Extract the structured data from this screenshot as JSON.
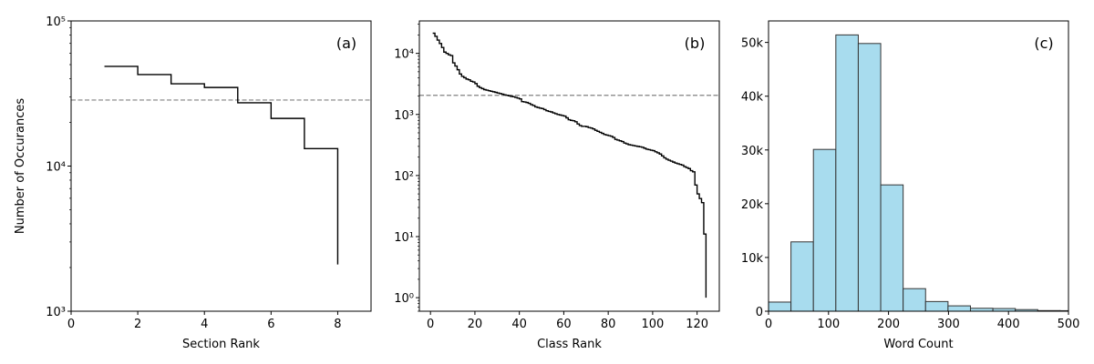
{
  "chart_data": [
    {
      "panel": "(a)",
      "type": "line",
      "drawstyle": "steps-post",
      "xlabel": "Section Rank",
      "ylabel": "Number of Occurances",
      "xlim": [
        0,
        9
      ],
      "ylim": [
        1000,
        100000
      ],
      "yscale": "log",
      "xticks": [
        0,
        2,
        4,
        6,
        8
      ],
      "xtick_labels": [
        "0",
        "2",
        "4",
        "6",
        "8"
      ],
      "yticks": [
        1000,
        10000,
        100000
      ],
      "ytick_labels": [
        "10³",
        "10⁴",
        "10⁵"
      ],
      "x": [
        1,
        2,
        3,
        4,
        5,
        6,
        7,
        8
      ],
      "y": [
        48600,
        42700,
        36900,
        34800,
        27300,
        21300,
        13200,
        2100
      ],
      "hline": {
        "y": 28500,
        "style": "dashed",
        "color": "#808080"
      },
      "line_color": "#000000",
      "grid": false
    },
    {
      "panel": "(b)",
      "type": "line",
      "drawstyle": "steps-post",
      "xlabel": "Class Rank",
      "ylabel": "",
      "xlim": [
        -5,
        130
      ],
      "ylim": [
        0.6,
        34000
      ],
      "yscale": "log",
      "xticks": [
        0,
        20,
        40,
        60,
        80,
        100,
        120
      ],
      "xtick_labels": [
        "0",
        "20",
        "40",
        "60",
        "80",
        "100",
        "120"
      ],
      "yticks": [
        1,
        10,
        100,
        1000,
        10000
      ],
      "ytick_labels": [
        "10⁰",
        "10¹",
        "10²",
        "10³",
        "10⁴"
      ],
      "y": [
        21400,
        19000,
        16500,
        14500,
        12500,
        10500,
        10000,
        9500,
        9200,
        7000,
        6200,
        5400,
        4600,
        4200,
        4000,
        3800,
        3700,
        3500,
        3400,
        3200,
        2900,
        2750,
        2650,
        2550,
        2500,
        2450,
        2400,
        2350,
        2300,
        2250,
        2200,
        2150,
        2100,
        2060,
        2020,
        1980,
        1950,
        1900,
        1850,
        1800,
        1620,
        1600,
        1570,
        1520,
        1450,
        1400,
        1330,
        1300,
        1270,
        1250,
        1200,
        1150,
        1120,
        1100,
        1060,
        1030,
        1000,
        980,
        960,
        940,
        880,
        820,
        800,
        790,
        760,
        700,
        660,
        640,
        640,
        630,
        610,
        600,
        580,
        550,
        530,
        510,
        490,
        470,
        460,
        450,
        440,
        420,
        390,
        380,
        370,
        360,
        340,
        330,
        320,
        315,
        310,
        305,
        300,
        295,
        290,
        280,
        270,
        265,
        260,
        255,
        245,
        235,
        225,
        210,
        195,
        185,
        178,
        172,
        166,
        160,
        156,
        152,
        148,
        140,
        135,
        130,
        120,
        115,
        70,
        50,
        42,
        36,
        11,
        1
      ],
      "x_start": 1,
      "hline": {
        "y": 2055,
        "style": "dashed",
        "color": "#808080"
      },
      "line_color": "#000000",
      "grid": false
    },
    {
      "panel": "(c)",
      "type": "bar",
      "subtype": "histogram",
      "xlabel": "Word Count",
      "ylabel": "",
      "xlim": [
        0,
        500
      ],
      "ylim": [
        0,
        54000
      ],
      "xticks": [
        0,
        100,
        200,
        300,
        400,
        500
      ],
      "xtick_labels": [
        "0",
        "100",
        "200",
        "300",
        "400",
        "500"
      ],
      "yticks": [
        0,
        10000,
        20000,
        30000,
        40000,
        50000
      ],
      "ytick_labels": [
        "0",
        "10k",
        "20k",
        "30k",
        "40k",
        "50k"
      ],
      "bin_edges": [
        0,
        37.4,
        74.8,
        112.2,
        149.6,
        187,
        224.4,
        261.8,
        299.2,
        336.6,
        374,
        411.4,
        448.8,
        486.2,
        523.6
      ],
      "values": [
        1700,
        12900,
        30100,
        51400,
        49800,
        23500,
        4200,
        1800,
        1000,
        550,
        500,
        300,
        120,
        100
      ],
      "bar_color": "#a8dcee",
      "edge_color": "#333333",
      "grid": false
    }
  ]
}
